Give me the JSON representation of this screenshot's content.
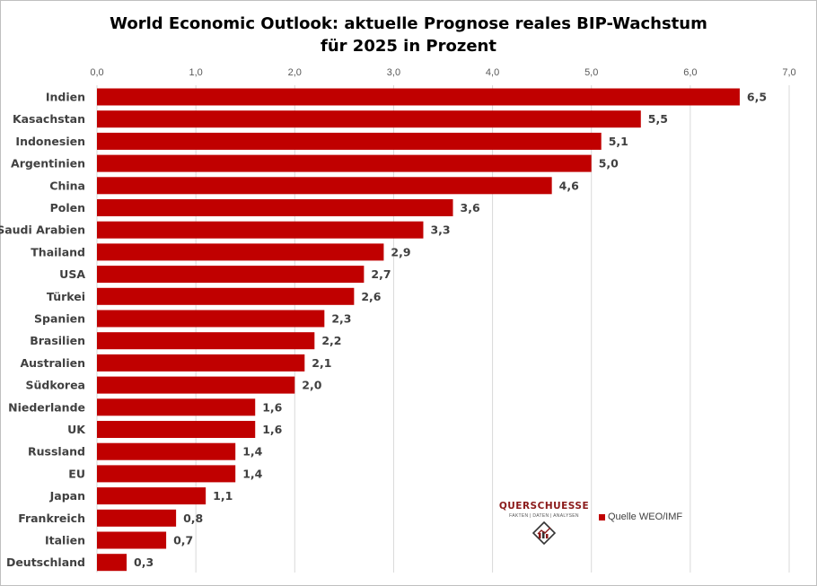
{
  "chart_data": {
    "type": "bar",
    "orientation": "horizontal",
    "title_line1": "World Economic Outlook: aktuelle Prognose reales BIP-Wachstum",
    "title_line2": "für 2025 in Prozent",
    "xlim": [
      0,
      7
    ],
    "x_ticks": [
      "0,0",
      "1,0",
      "2,0",
      "3,0",
      "4,0",
      "5,0",
      "6,0",
      "7,0"
    ],
    "x_tick_values": [
      0,
      1,
      2,
      3,
      4,
      5,
      6,
      7
    ],
    "x_axis_position": "top",
    "grid": true,
    "bar_color": "#c00000",
    "categories": [
      "Indien",
      "Kasachstan",
      "Indonesien",
      "Argentinien",
      "China",
      "Polen",
      "Saudi Arabien",
      "Thailand",
      "USA",
      "Türkei",
      "Spanien",
      "Brasilien",
      "Australien",
      "Südkorea",
      "Niederlande",
      "UK",
      "Russland",
      "EU",
      "Japan",
      "Frankreich",
      "Italien",
      "Deutschland"
    ],
    "values": [
      6.5,
      5.5,
      5.1,
      5.0,
      4.6,
      3.6,
      3.3,
      2.9,
      2.7,
      2.6,
      2.3,
      2.2,
      2.1,
      2.0,
      1.6,
      1.6,
      1.4,
      1.4,
      1.1,
      0.8,
      0.7,
      0.3
    ],
    "value_labels": [
      "6,5",
      "5,5",
      "5,1",
      "5,0",
      "4,6",
      "3,6",
      "3,3",
      "2,9",
      "2,7",
      "2,6",
      "2,3",
      "2,2",
      "2,1",
      "2,0",
      "1,6",
      "1,6",
      "1,4",
      "1,4",
      "1,1",
      "0,8",
      "0,7",
      "0,3"
    ],
    "legend": "Quelle WEO/IMF",
    "legend_position": "bottom-right"
  },
  "logo": {
    "name": "QUERSCHUESSE",
    "tagline": "FAKTEN | DATEN | ANALYSEN"
  }
}
